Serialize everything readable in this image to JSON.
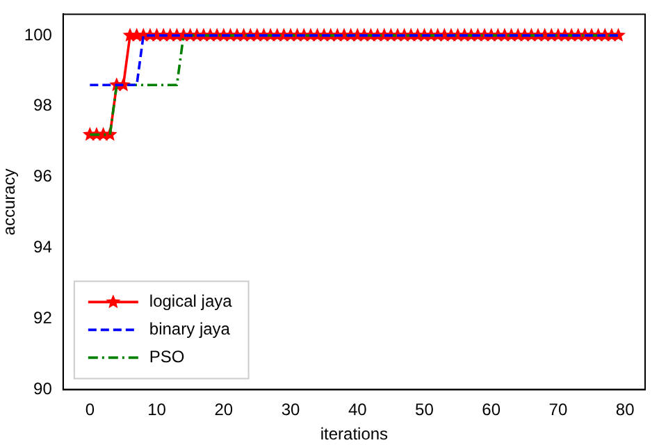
{
  "chart_data": {
    "type": "line",
    "xlabel": "iterations",
    "ylabel": "accuracy",
    "xlim": [
      -4,
      83
    ],
    "ylim": [
      90,
      100.6
    ],
    "xticks": [
      0,
      10,
      20,
      30,
      40,
      50,
      60,
      70,
      80
    ],
    "yticks": [
      90,
      92,
      94,
      96,
      98,
      100
    ],
    "grid": false,
    "legend": "bottom left",
    "x": [
      0,
      1,
      2,
      3,
      4,
      5,
      6,
      7,
      8,
      9,
      10,
      11,
      12,
      13,
      14,
      15,
      16,
      17,
      18,
      19,
      20,
      21,
      22,
      23,
      24,
      25,
      26,
      27,
      28,
      29,
      30,
      31,
      32,
      33,
      34,
      35,
      36,
      37,
      38,
      39,
      40,
      41,
      42,
      43,
      44,
      45,
      46,
      47,
      48,
      49,
      50,
      51,
      52,
      53,
      54,
      55,
      56,
      57,
      58,
      59,
      60,
      61,
      62,
      63,
      64,
      65,
      66,
      67,
      68,
      69,
      70,
      71,
      72,
      73,
      74,
      75,
      76,
      77,
      78,
      79
    ],
    "series": [
      {
        "name": "logical jaya",
        "color": "#ff0000",
        "marker": "star",
        "line_style": "solid",
        "values": [
          97.2,
          97.2,
          97.2,
          97.2,
          98.6,
          98.6,
          100,
          100,
          100,
          100,
          100,
          100,
          100,
          100,
          100,
          100,
          100,
          100,
          100,
          100,
          100,
          100,
          100,
          100,
          100,
          100,
          100,
          100,
          100,
          100,
          100,
          100,
          100,
          100,
          100,
          100,
          100,
          100,
          100,
          100,
          100,
          100,
          100,
          100,
          100,
          100,
          100,
          100,
          100,
          100,
          100,
          100,
          100,
          100,
          100,
          100,
          100,
          100,
          100,
          100,
          100,
          100,
          100,
          100,
          100,
          100,
          100,
          100,
          100,
          100,
          100,
          100,
          100,
          100,
          100,
          100,
          100,
          100,
          100,
          100
        ]
      },
      {
        "name": "binary jaya",
        "color": "#0000ff",
        "marker": "none",
        "line_style": "dashed",
        "values": [
          98.6,
          98.6,
          98.6,
          98.6,
          98.6,
          98.6,
          98.6,
          98.6,
          100,
          100,
          100,
          100,
          100,
          100,
          100,
          100,
          100,
          100,
          100,
          100,
          100,
          100,
          100,
          100,
          100,
          100,
          100,
          100,
          100,
          100,
          100,
          100,
          100,
          100,
          100,
          100,
          100,
          100,
          100,
          100,
          100,
          100,
          100,
          100,
          100,
          100,
          100,
          100,
          100,
          100,
          100,
          100,
          100,
          100,
          100,
          100,
          100,
          100,
          100,
          100,
          100,
          100,
          100,
          100,
          100,
          100,
          100,
          100,
          100,
          100,
          100,
          100,
          100,
          100,
          100,
          100,
          100,
          100,
          100,
          100
        ]
      },
      {
        "name": "PSO",
        "color": "#008000",
        "marker": "none",
        "line_style": "dashdot",
        "values": [
          97.2,
          97.2,
          97.2,
          97.2,
          98.6,
          98.6,
          98.6,
          98.6,
          98.6,
          98.6,
          98.6,
          98.6,
          98.6,
          98.6,
          100,
          100,
          100,
          100,
          100,
          100,
          100,
          100,
          100,
          100,
          100,
          100,
          100,
          100,
          100,
          100,
          100,
          100,
          100,
          100,
          100,
          100,
          100,
          100,
          100,
          100,
          100,
          100,
          100,
          100,
          100,
          100,
          100,
          100,
          100,
          100,
          100,
          100,
          100,
          100,
          100,
          100,
          100,
          100,
          100,
          100,
          100,
          100,
          100,
          100,
          100,
          100,
          100,
          100,
          100,
          100,
          100,
          100,
          100,
          100,
          100,
          100,
          100,
          100,
          100,
          100
        ]
      }
    ]
  }
}
